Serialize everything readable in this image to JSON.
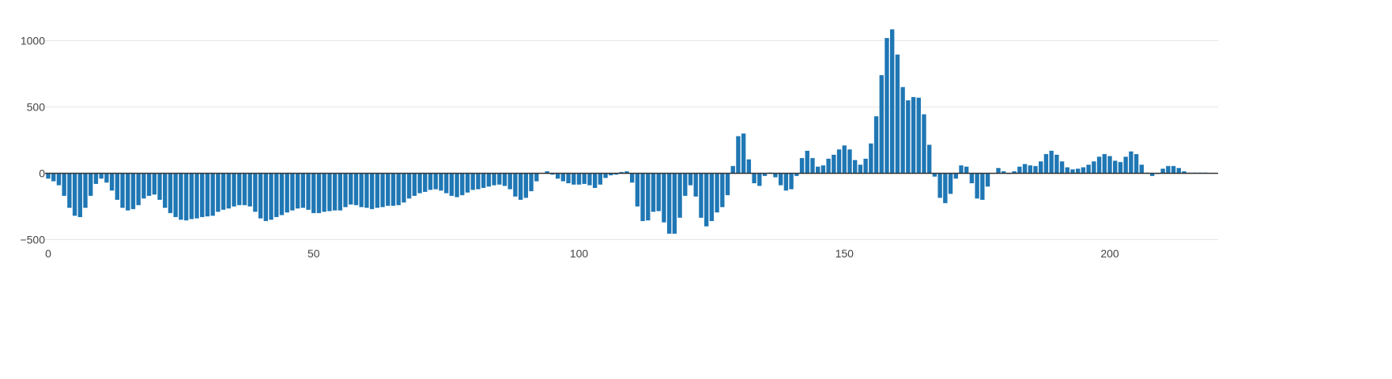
{
  "chart_data": {
    "type": "bar",
    "title": "",
    "xlabel": "",
    "ylabel": "",
    "xlim": [
      0,
      220
    ],
    "ylim": [
      -500,
      1100
    ],
    "grid": true,
    "bar_color": "#1f77b4",
    "grid_color": "#e5e5e5",
    "zero_line_color": "#333333",
    "text_color": "#444444",
    "x_ticks": [
      {
        "value": 0,
        "label": "0"
      },
      {
        "value": 50,
        "label": "50"
      },
      {
        "value": 100,
        "label": "100"
      },
      {
        "value": 150,
        "label": "150"
      },
      {
        "value": 200,
        "label": "200"
      }
    ],
    "y_ticks": [
      {
        "value": -500,
        "label": "−500"
      },
      {
        "value": 0,
        "label": "0"
      },
      {
        "value": 500,
        "label": "500"
      },
      {
        "value": 1000,
        "label": "1000"
      }
    ],
    "values": [
      -40,
      -60,
      -90,
      -170,
      -260,
      -320,
      -330,
      -260,
      -170,
      -80,
      -40,
      -70,
      -130,
      -200,
      -260,
      -280,
      -270,
      -240,
      -190,
      -170,
      -160,
      -200,
      -260,
      -300,
      -330,
      -350,
      -355,
      -345,
      -340,
      -330,
      -325,
      -320,
      -290,
      -275,
      -265,
      -250,
      -240,
      -240,
      -250,
      -290,
      -340,
      -360,
      -350,
      -330,
      -315,
      -295,
      -280,
      -265,
      -260,
      -275,
      -300,
      -300,
      -290,
      -285,
      -280,
      -280,
      -255,
      -235,
      -240,
      -255,
      -260,
      -270,
      -260,
      -255,
      -245,
      -245,
      -240,
      -220,
      -190,
      -170,
      -150,
      -140,
      -125,
      -120,
      -130,
      -150,
      -170,
      -180,
      -165,
      -145,
      -125,
      -120,
      -110,
      -100,
      -90,
      -85,
      -95,
      -120,
      -175,
      -200,
      -185,
      -135,
      -60,
      0,
      15,
      -10,
      -40,
      -60,
      -75,
      -85,
      -85,
      -80,
      -90,
      -110,
      -85,
      -35,
      -15,
      -10,
      10,
      15,
      -70,
      -250,
      -360,
      -355,
      -290,
      -285,
      -370,
      -455,
      -455,
      -335,
      -170,
      -90,
      -175,
      -335,
      -400,
      -360,
      -295,
      -255,
      -165,
      55,
      280,
      300,
      105,
      -75,
      -95,
      -20,
      5,
      -30,
      -90,
      -130,
      -120,
      -20,
      115,
      170,
      115,
      50,
      60,
      110,
      140,
      180,
      210,
      180,
      100,
      65,
      110,
      225,
      430,
      740,
      1020,
      1085,
      895,
      650,
      550,
      575,
      570,
      445,
      215,
      -25,
      -185,
      -225,
      -155,
      -40,
      60,
      50,
      -75,
      -190,
      -200,
      -100,
      0,
      40,
      15,
      -5,
      15,
      50,
      70,
      60,
      55,
      90,
      145,
      170,
      140,
      90,
      45,
      30,
      35,
      45,
      65,
      90,
      125,
      145,
      130,
      95,
      85,
      125,
      165,
      145,
      65,
      5,
      -20,
      -5,
      35,
      55,
      55,
      40,
      15,
      5,
      5,
      5,
      5
    ]
  }
}
